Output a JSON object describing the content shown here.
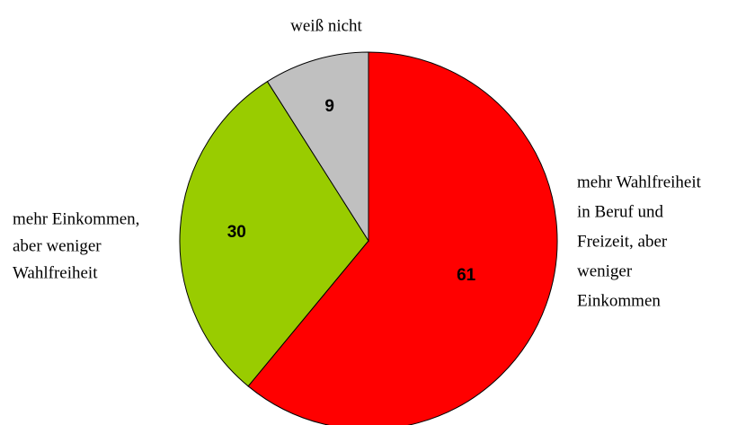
{
  "chart_data": {
    "type": "pie",
    "categories": [
      [
        "mehr Wahlfreiheit",
        "in Beruf und",
        "Freizeit, aber",
        "weniger",
        "Einkommen"
      ],
      [
        "mehr Einkommen,",
        "aber weniger",
        "Wahlfreiheit"
      ],
      [
        "weiß nicht"
      ]
    ],
    "values": [
      61,
      30,
      9
    ],
    "colors": [
      "#ff0000",
      "#99cc00",
      "#c0c0c0"
    ]
  }
}
